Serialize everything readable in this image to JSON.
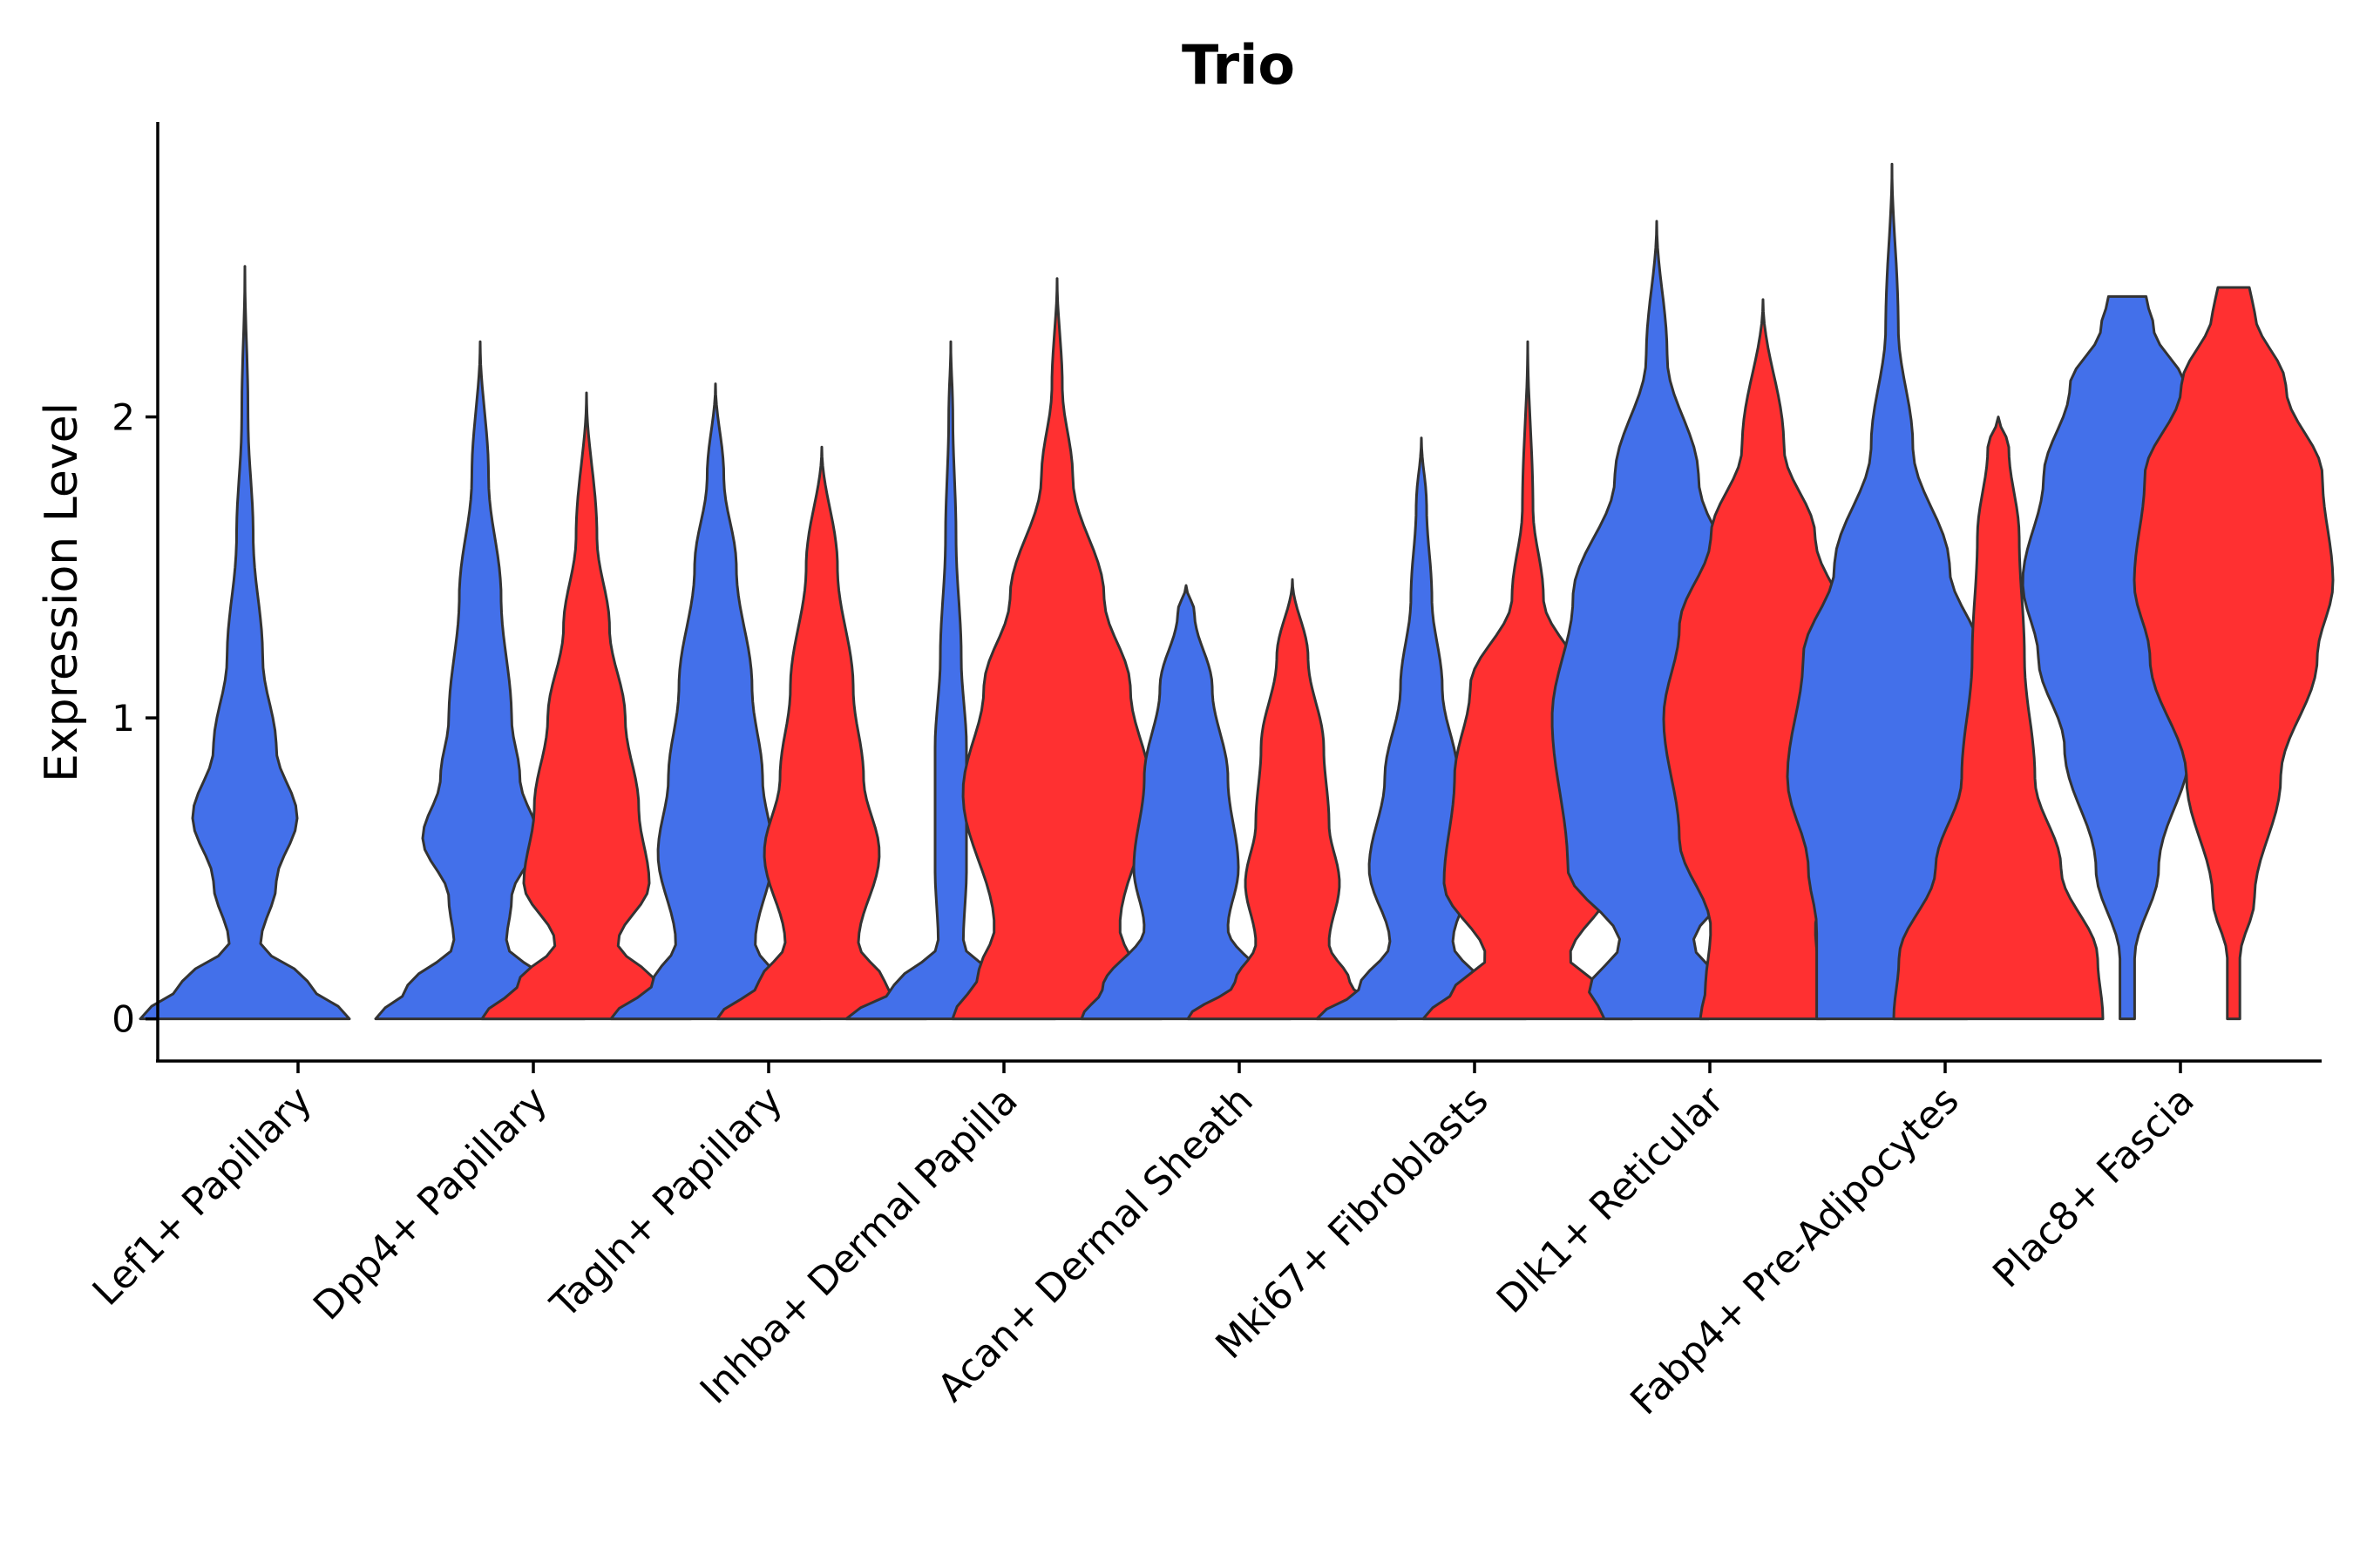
{
  "chart_data": {
    "type": "violin",
    "title": "Trio",
    "xlabel": "",
    "ylabel": "Expression Level",
    "ylim": [
      -0.14,
      2.98
    ],
    "yticks": [
      0,
      1,
      2
    ],
    "grid": false,
    "legend": "none",
    "colors": {
      "group1": "#4370EA",
      "group2": "#FF3031",
      "outline": "#333333"
    },
    "categories": [
      "Lef1+ Papillary",
      "Dpp4+ Papillary",
      "Tagln+ Papillary",
      "Inhba+ Dermal Papilla",
      "Acan+ Dermal Sheath",
      "Mki67+ Fibroblasts",
      "Dlk1+ Reticular",
      "Fabp4+ Pre-Adipocytes",
      "Plac8+ Fascia"
    ],
    "series": [
      {
        "name": "group1",
        "color": "#4370EA",
        "violins": [
          {
            "max": 2.5,
            "profile": [
              [
                0,
                1.0
              ],
              [
                0.12,
                0.6
              ],
              [
                0.25,
                0.15
              ],
              [
                0.45,
                0.3
              ],
              [
                0.67,
                0.5
              ],
              [
                0.9,
                0.3
              ],
              [
                1.2,
                0.17
              ],
              [
                1.6,
                0.08
              ],
              [
                2.0,
                0.03
              ],
              [
                2.5,
                0.0
              ]
            ]
          },
          {
            "max": 2.25,
            "profile": [
              [
                0,
                1.0
              ],
              [
                0.1,
                0.7
              ],
              [
                0.25,
                0.25
              ],
              [
                0.4,
                0.3
              ],
              [
                0.6,
                0.55
              ],
              [
                0.8,
                0.38
              ],
              [
                1.0,
                0.3
              ],
              [
                1.4,
                0.2
              ],
              [
                1.8,
                0.08
              ],
              [
                2.25,
                0.0
              ]
            ]
          },
          {
            "max": 2.11,
            "profile": [
              [
                0,
                1.0
              ],
              [
                0.12,
                0.6
              ],
              [
                0.25,
                0.38
              ],
              [
                0.55,
                0.55
              ],
              [
                0.8,
                0.45
              ],
              [
                1.1,
                0.35
              ],
              [
                1.5,
                0.2
              ],
              [
                1.8,
                0.08
              ],
              [
                2.11,
                0.0
              ]
            ]
          },
          {
            "max": 2.25,
            "profile": [
              [
                0,
                1.0
              ],
              [
                0.1,
                0.55
              ],
              [
                0.25,
                0.12
              ],
              [
                0.5,
                0.15
              ],
              [
                0.9,
                0.15
              ],
              [
                1.2,
                0.1
              ],
              [
                1.6,
                0.05
              ],
              [
                2.0,
                0.02
              ],
              [
                2.25,
                0.0
              ]
            ]
          },
          {
            "max": 1.44,
            "profile": [
              [
                0,
                1.0
              ],
              [
                0.1,
                0.8
              ],
              [
                0.3,
                0.4
              ],
              [
                0.5,
                0.5
              ],
              [
                0.8,
                0.4
              ],
              [
                1.1,
                0.25
              ],
              [
                1.35,
                0.08
              ],
              [
                1.44,
                0.0
              ]
            ]
          },
          {
            "max": 1.93,
            "profile": [
              [
                0,
                1.0
              ],
              [
                0.1,
                0.6
              ],
              [
                0.25,
                0.3
              ],
              [
                0.5,
                0.5
              ],
              [
                0.8,
                0.35
              ],
              [
                1.1,
                0.2
              ],
              [
                1.4,
                0.1
              ],
              [
                1.7,
                0.05
              ],
              [
                1.93,
                0.0
              ]
            ]
          },
          {
            "max": 2.65,
            "profile": [
              [
                0,
                0.5
              ],
              [
                0.1,
                0.65
              ],
              [
                0.25,
                0.35
              ],
              [
                0.5,
                0.85
              ],
              [
                1.0,
                1.0
              ],
              [
                1.4,
                0.8
              ],
              [
                1.8,
                0.4
              ],
              [
                2.2,
                0.1
              ],
              [
                2.65,
                0.0
              ]
            ]
          },
          {
            "max": 2.84,
            "profile": [
              [
                0,
                0.72
              ],
              [
                0.3,
                0.72
              ],
              [
                0.5,
                0.8
              ],
              [
                0.8,
                1.0
              ],
              [
                1.2,
                0.85
              ],
              [
                1.5,
                0.55
              ],
              [
                1.9,
                0.2
              ],
              [
                2.3,
                0.06
              ],
              [
                2.84,
                0.0
              ]
            ]
          },
          {
            "max": 2.4,
            "profile": [
              [
                0,
                0.07
              ],
              [
                0.2,
                0.07
              ],
              [
                0.5,
                0.3
              ],
              [
                0.9,
                0.6
              ],
              [
                1.2,
                0.85
              ],
              [
                1.45,
                1.0
              ],
              [
                1.8,
                0.8
              ],
              [
                2.1,
                0.55
              ],
              [
                2.3,
                0.25
              ],
              [
                2.4,
                0.18
              ]
            ]
          }
        ]
      },
      {
        "name": "group2",
        "color": "#FF3031",
        "violins": [
          null,
          {
            "max": 2.08,
            "profile": [
              [
                0,
                1.0
              ],
              [
                0.12,
                0.65
              ],
              [
                0.25,
                0.3
              ],
              [
                0.45,
                0.6
              ],
              [
                0.7,
                0.5
              ],
              [
                1.0,
                0.37
              ],
              [
                1.3,
                0.22
              ],
              [
                1.6,
                0.1
              ],
              [
                2.08,
                0.0
              ]
            ]
          },
          {
            "max": 1.9,
            "profile": [
              [
                0,
                1.0
              ],
              [
                0.12,
                0.6
              ],
              [
                0.25,
                0.35
              ],
              [
                0.55,
                0.55
              ],
              [
                0.8,
                0.4
              ],
              [
                1.1,
                0.3
              ],
              [
                1.5,
                0.15
              ],
              [
                1.9,
                0.0
              ]
            ]
          },
          {
            "max": 2.46,
            "profile": [
              [
                0,
                1.0
              ],
              [
                0.15,
                0.75
              ],
              [
                0.3,
                0.6
              ],
              [
                0.75,
                0.9
              ],
              [
                1.1,
                0.7
              ],
              [
                1.4,
                0.45
              ],
              [
                1.8,
                0.15
              ],
              [
                2.1,
                0.05
              ],
              [
                2.46,
                0.0
              ]
            ]
          },
          {
            "max": 1.46,
            "profile": [
              [
                0,
                1.0
              ],
              [
                0.12,
                0.55
              ],
              [
                0.25,
                0.35
              ],
              [
                0.45,
                0.45
              ],
              [
                0.65,
                0.35
              ],
              [
                0.9,
                0.3
              ],
              [
                1.2,
                0.15
              ],
              [
                1.46,
                0.0
              ]
            ]
          },
          {
            "max": 2.25,
            "profile": [
              [
                0,
                1.0
              ],
              [
                0.1,
                0.7
              ],
              [
                0.2,
                0.4
              ],
              [
                0.45,
                0.8
              ],
              [
                0.8,
                0.7
              ],
              [
                1.1,
                0.55
              ],
              [
                1.4,
                0.15
              ],
              [
                1.7,
                0.05
              ],
              [
                2.25,
                0.0
              ]
            ]
          },
          {
            "max": 2.39,
            "profile": [
              [
                0,
                0.6
              ],
              [
                0.1,
                0.55
              ],
              [
                0.3,
                0.5
              ],
              [
                0.6,
                0.8
              ],
              [
                1.0,
                0.95
              ],
              [
                1.3,
                0.8
              ],
              [
                1.6,
                0.5
              ],
              [
                1.9,
                0.2
              ],
              [
                2.39,
                0.0
              ]
            ]
          },
          {
            "max": 2.0,
            "profile": [
              [
                0,
                1.0
              ],
              [
                0.2,
                0.95
              ],
              [
                0.5,
                0.6
              ],
              [
                0.8,
                0.35
              ],
              [
                1.2,
                0.25
              ],
              [
                1.6,
                0.2
              ],
              [
                1.9,
                0.1
              ],
              [
                2.0,
                0.0
              ]
            ]
          },
          {
            "max": 2.43,
            "profile": [
              [
                0,
                0.06
              ],
              [
                0.2,
                0.06
              ],
              [
                0.4,
                0.2
              ],
              [
                0.8,
                0.45
              ],
              [
                1.2,
                0.8
              ],
              [
                1.45,
                0.95
              ],
              [
                1.8,
                0.85
              ],
              [
                2.1,
                0.5
              ],
              [
                2.35,
                0.2
              ],
              [
                2.43,
                0.15
              ]
            ]
          }
        ]
      }
    ]
  }
}
